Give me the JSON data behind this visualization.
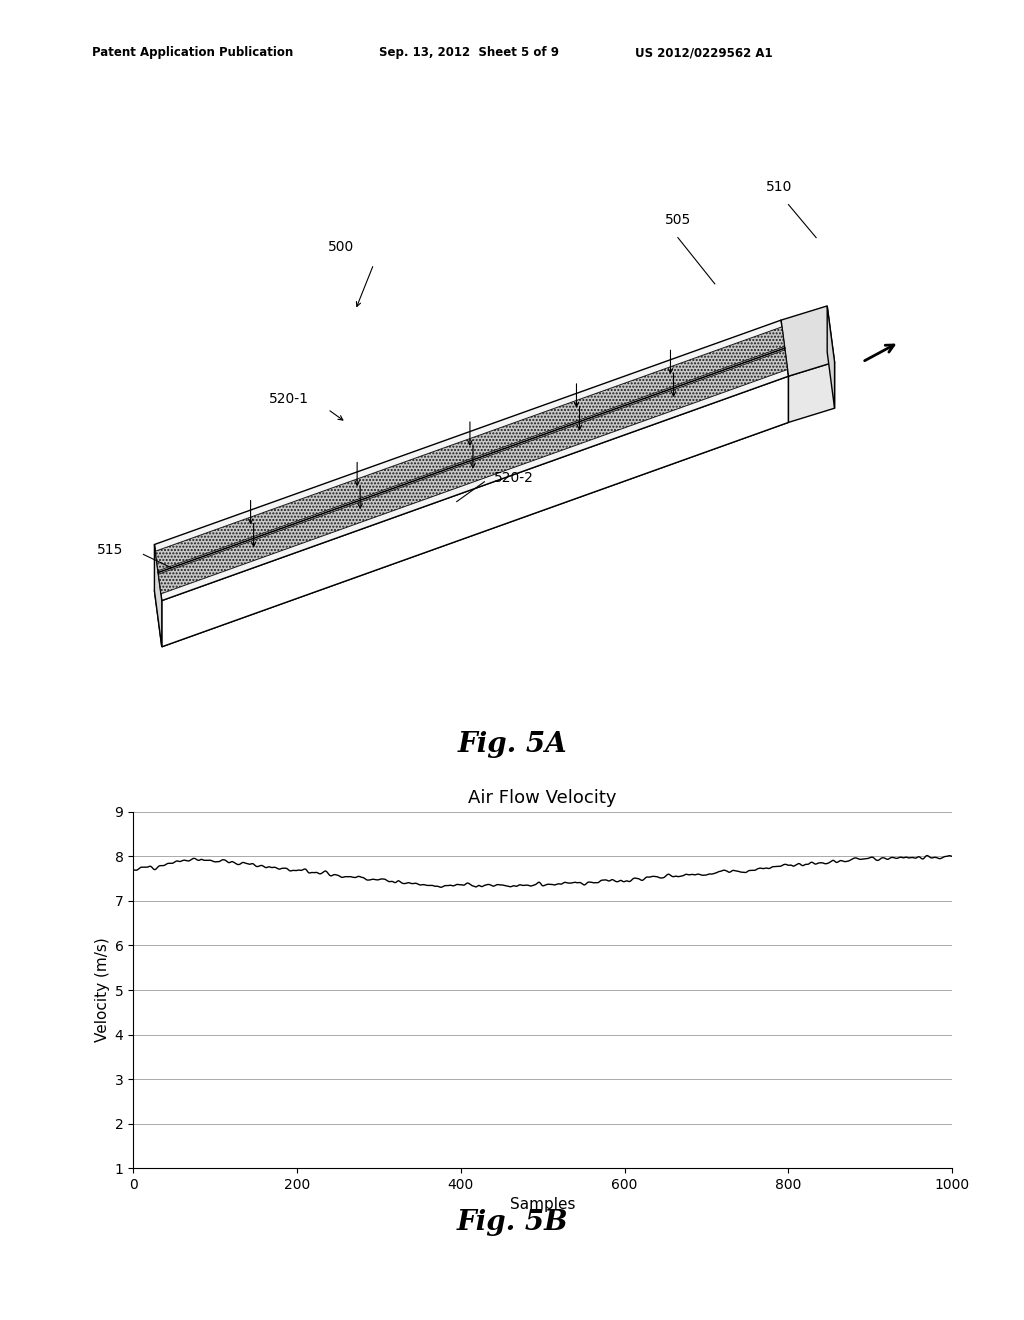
{
  "page_title_left": "Patent Application Publication",
  "page_title_mid": "Sep. 13, 2012  Sheet 5 of 9",
  "page_title_right": "US 2012/0229562 A1",
  "fig5a_label": "Fig. 5A",
  "fig5b_label": "Fig. 5B",
  "chart_title": "Air Flow Velocity",
  "xlabel": "Samples",
  "ylabel": "Velocity (m/s)",
  "xlim": [
    0,
    1000
  ],
  "ylim": [
    1,
    9
  ],
  "yticks": [
    1,
    2,
    3,
    4,
    5,
    6,
    7,
    8,
    9
  ],
  "xticks": [
    0,
    200,
    400,
    600,
    800,
    1000
  ],
  "background_color": "#ffffff",
  "line_color": "#000000",
  "grid_color": "#aaaaaa"
}
